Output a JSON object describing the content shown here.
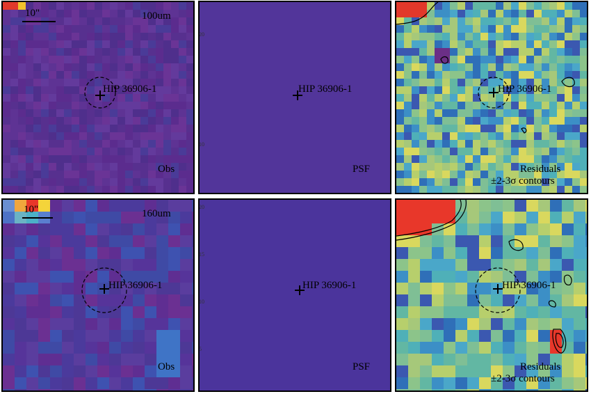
{
  "panels": {
    "row1": {
      "obs": {
        "band": "100um",
        "kind": "Obs",
        "target": "HIP 36906-1",
        "scale": "10\""
      },
      "psf": {
        "kind": "PSF",
        "target": "HIP 36906-1",
        "axis": [
          "20",
          "10"
        ]
      },
      "res": {
        "kind": "Residuals",
        "contours": "±2-3σ contours",
        "target": "HIP 36906-1"
      }
    },
    "row2": {
      "obs": {
        "band": "160um",
        "kind": "Obs",
        "target": "HIP 36906-1",
        "scale": "10\""
      },
      "psf": {
        "kind": "PSF",
        "target": "HIP 36906-1",
        "axis": [
          "20",
          "15",
          "10",
          "5"
        ]
      },
      "res": {
        "kind": "Residuals",
        "contours": "±2-3σ contours",
        "target": "HIP 36906-1"
      }
    }
  },
  "colors": {
    "obs_base": "#5a2f8f",
    "psf_base": "#4b3a9a",
    "hot": "#e8372a",
    "frame": "#000000"
  }
}
